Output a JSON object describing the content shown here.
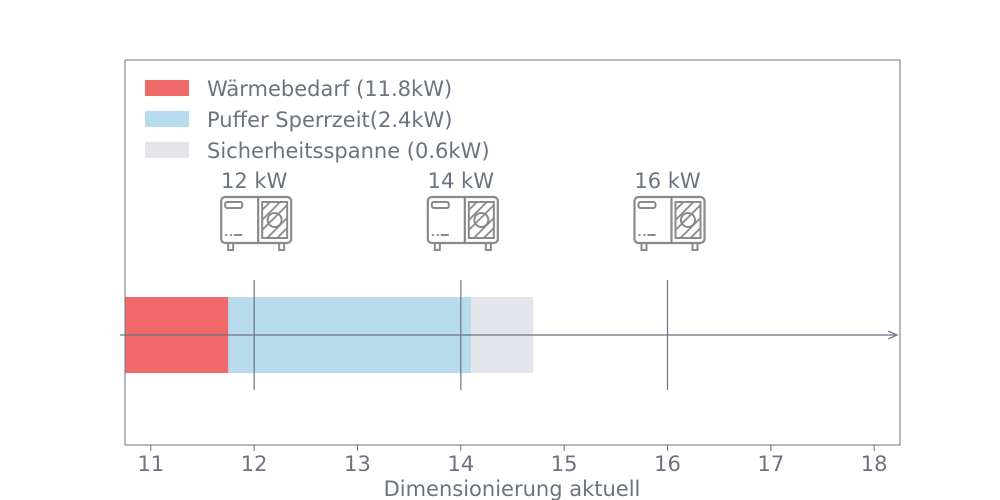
{
  "chart_data": {
    "type": "bar",
    "orientation": "horizontal-stacked",
    "xlabel": "Dimensionierung aktuell",
    "xlim": [
      10.75,
      18.25
    ],
    "xticks": [
      11,
      12,
      13,
      14,
      15,
      16,
      17,
      18
    ],
    "grid": false,
    "legend_position": "top-left",
    "segments": [
      {
        "name": "Wärmebedarf (11.8kW)",
        "start": 10.75,
        "end": 11.75,
        "color": "#f06a6a"
      },
      {
        "name": "Puffer Sperrzeit(2.4kW)",
        "start": 11.75,
        "end": 14.1,
        "color": "#b8dbee"
      },
      {
        "name": "Sicherheitsspanne (0.6kW)",
        "start": 14.1,
        "end": 14.7,
        "color": "#e4e5ea"
      }
    ],
    "markers": [
      {
        "value": 12,
        "label": "12 kW",
        "icon": "heat-pump-icon"
      },
      {
        "value": 14,
        "label": "14 kW",
        "icon": "heat-pump-icon"
      },
      {
        "value": 16,
        "label": "16 kW",
        "icon": "heat-pump-icon"
      }
    ],
    "text_color": "#6b7280",
    "line_color": "#6b7280"
  }
}
